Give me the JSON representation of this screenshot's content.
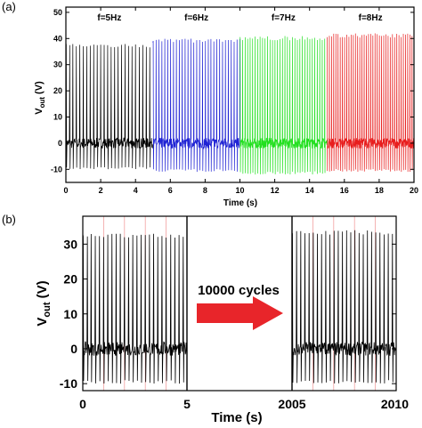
{
  "chart_data": [
    {
      "panel_label": "(a)",
      "type": "line",
      "xlabel": "Time (s)",
      "ylabel_main": "V",
      "ylabel_sub": "out",
      "ylabel_unit": " (V)",
      "xlim": [
        0,
        20
      ],
      "ylim": [
        -15,
        52
      ],
      "x_ticks": [
        0,
        2,
        4,
        6,
        8,
        10,
        12,
        14,
        16,
        18,
        20
      ],
      "x_tick_labels": [
        "0",
        "2",
        "4",
        "6",
        "8",
        "10",
        "12",
        "14",
        "16",
        "18",
        "20"
      ],
      "y_ticks": [
        -10,
        0,
        10,
        20,
        30,
        40,
        50
      ],
      "y_tick_labels": [
        "-10",
        "0",
        "10",
        "20",
        "30",
        "40",
        "50"
      ],
      "grid": false,
      "series": [
        {
          "name": "f=5Hz",
          "color": "#000000",
          "x_range": [
            0,
            5
          ],
          "frequency_hz": 5,
          "peak_v": 38,
          "trough_v": -10,
          "baseline_noise_v": 2
        },
        {
          "name": "f=6Hz",
          "color": "#1f22d4",
          "x_range": [
            5,
            10
          ],
          "frequency_hz": 6,
          "peak_v": 40,
          "trough_v": -11,
          "baseline_noise_v": 2
        },
        {
          "name": "f=7Hz",
          "color": "#22e01f",
          "x_range": [
            10,
            15
          ],
          "frequency_hz": 7,
          "peak_v": 41,
          "trough_v": -12,
          "baseline_noise_v": 2
        },
        {
          "name": "f=8Hz",
          "color": "#e81e1e",
          "x_range": [
            15,
            20
          ],
          "frequency_hz": 8,
          "peak_v": 42,
          "trough_v": -11,
          "baseline_noise_v": 2
        }
      ]
    },
    {
      "panel_label": "(b)",
      "type": "line",
      "xlabel": "Time (s)",
      "ylabel_main": "V",
      "ylabel_sub": "out",
      "ylabel_unit": " (V)",
      "ylim": [
        -12,
        38
      ],
      "y_ticks": [
        -10,
        0,
        10,
        20,
        30
      ],
      "y_tick_labels": [
        "-10",
        "0",
        "10",
        "20",
        "30"
      ],
      "x_tick_labels": [
        "0",
        "5",
        "2005",
        "2010"
      ],
      "annotation": "10000 cycles",
      "arrow_color": "#e8252a",
      "grid": true,
      "grid_color": "#f2a0a0",
      "series": [
        {
          "name": "",
          "color": "#000000",
          "x_range": [
            0,
            5
          ],
          "frequency_hz": 5,
          "peak_v": 33,
          "trough_v": -10,
          "baseline_noise_v": 2
        },
        {
          "name": "",
          "color": "#000000",
          "x_range": [
            2005,
            2010
          ],
          "frequency_hz": 5,
          "peak_v": 34,
          "trough_v": -10,
          "baseline_noise_v": 2
        }
      ]
    }
  ]
}
